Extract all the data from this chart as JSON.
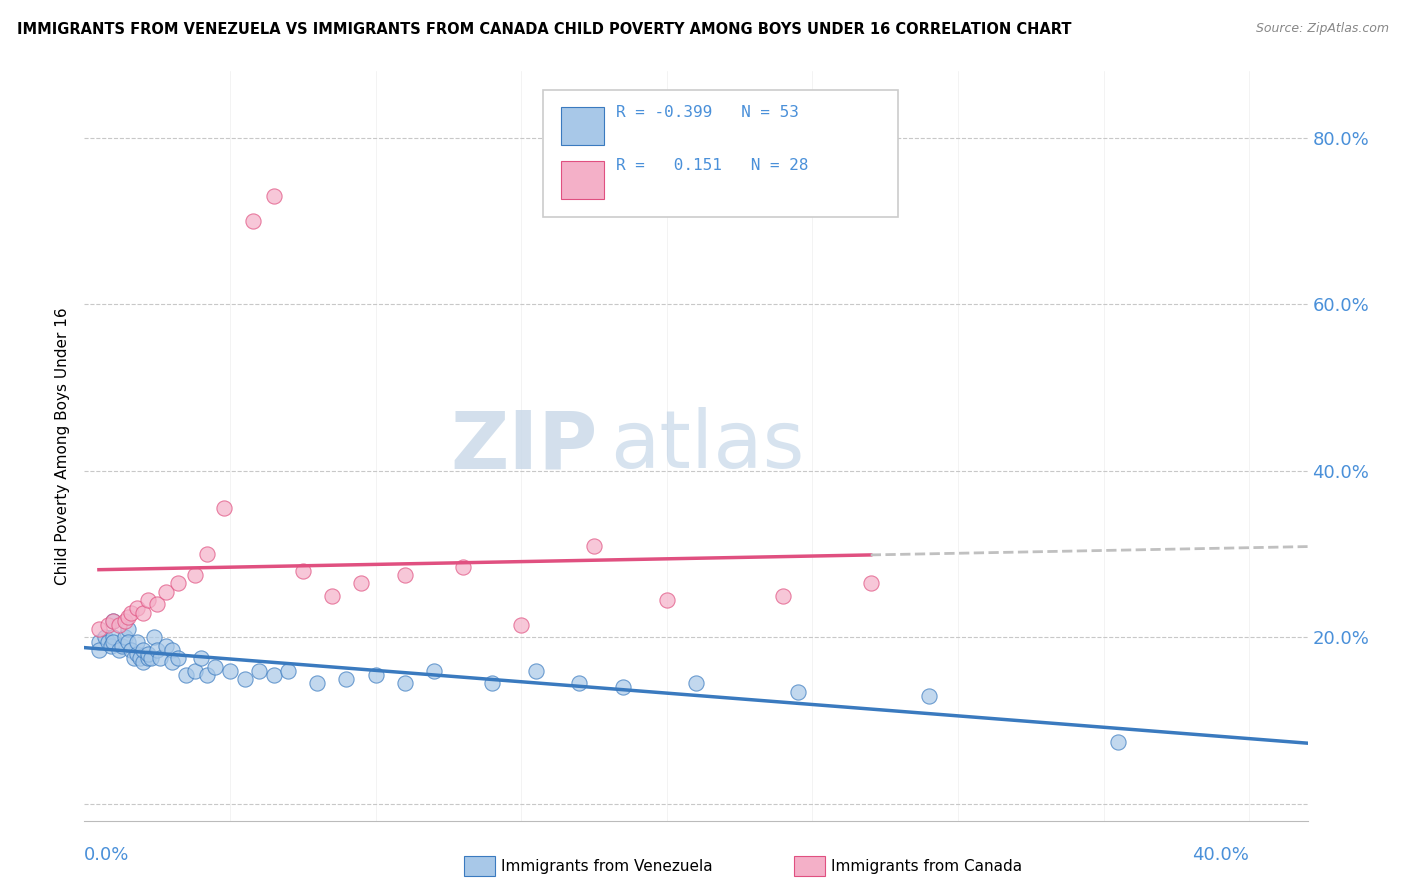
{
  "title": "IMMIGRANTS FROM VENEZUELA VS IMMIGRANTS FROM CANADA CHILD POVERTY AMONG BOYS UNDER 16 CORRELATION CHART",
  "source": "Source: ZipAtlas.com",
  "ylabel": "Child Poverty Among Boys Under 16",
  "xlim": [
    0.0,
    0.42
  ],
  "ylim": [
    -0.02,
    0.88
  ],
  "yticks": [
    0.0,
    0.2,
    0.4,
    0.6,
    0.8
  ],
  "ytick_labels": [
    "",
    "20.0%",
    "40.0%",
    "60.0%",
    "80.0%"
  ],
  "watermark_zip": "ZIP",
  "watermark_atlas": "atlas",
  "color_venezuela": "#a8c8e8",
  "color_canada": "#f4b0c8",
  "color_venezuela_line": "#3a7abf",
  "color_canada_line": "#e05080",
  "color_extrapolate": "#c0c0c0",
  "color_ytick": "#4a90d9",
  "color_grid": "#c8c8c8",
  "venezuela_x": [
    0.005,
    0.005,
    0.007,
    0.008,
    0.009,
    0.01,
    0.01,
    0.01,
    0.012,
    0.013,
    0.014,
    0.015,
    0.015,
    0.016,
    0.017,
    0.018,
    0.018,
    0.019,
    0.02,
    0.02,
    0.022,
    0.022,
    0.023,
    0.024,
    0.025,
    0.026,
    0.028,
    0.03,
    0.03,
    0.032,
    0.035,
    0.038,
    0.04,
    0.042,
    0.045,
    0.05,
    0.055,
    0.06,
    0.065,
    0.07,
    0.08,
    0.09,
    0.1,
    0.11,
    0.12,
    0.14,
    0.155,
    0.17,
    0.185,
    0.21,
    0.245,
    0.29,
    0.355
  ],
  "venezuela_y": [
    0.195,
    0.185,
    0.2,
    0.195,
    0.19,
    0.22,
    0.2,
    0.195,
    0.185,
    0.19,
    0.2,
    0.21,
    0.195,
    0.185,
    0.175,
    0.18,
    0.195,
    0.175,
    0.17,
    0.185,
    0.175,
    0.18,
    0.175,
    0.2,
    0.185,
    0.175,
    0.19,
    0.185,
    0.17,
    0.175,
    0.155,
    0.16,
    0.175,
    0.155,
    0.165,
    0.16,
    0.15,
    0.16,
    0.155,
    0.16,
    0.145,
    0.15,
    0.155,
    0.145,
    0.16,
    0.145,
    0.16,
    0.145,
    0.14,
    0.145,
    0.135,
    0.13,
    0.075
  ],
  "canada_x": [
    0.005,
    0.008,
    0.01,
    0.012,
    0.014,
    0.015,
    0.016,
    0.018,
    0.02,
    0.022,
    0.025,
    0.028,
    0.032,
    0.038,
    0.042,
    0.048,
    0.058,
    0.065,
    0.075,
    0.085,
    0.095,
    0.11,
    0.13,
    0.15,
    0.175,
    0.2,
    0.24,
    0.27
  ],
  "canada_y": [
    0.21,
    0.215,
    0.22,
    0.215,
    0.22,
    0.225,
    0.23,
    0.235,
    0.23,
    0.245,
    0.24,
    0.255,
    0.265,
    0.275,
    0.3,
    0.355,
    0.7,
    0.73,
    0.28,
    0.25,
    0.265,
    0.275,
    0.285,
    0.215,
    0.31,
    0.245,
    0.25,
    0.265
  ]
}
